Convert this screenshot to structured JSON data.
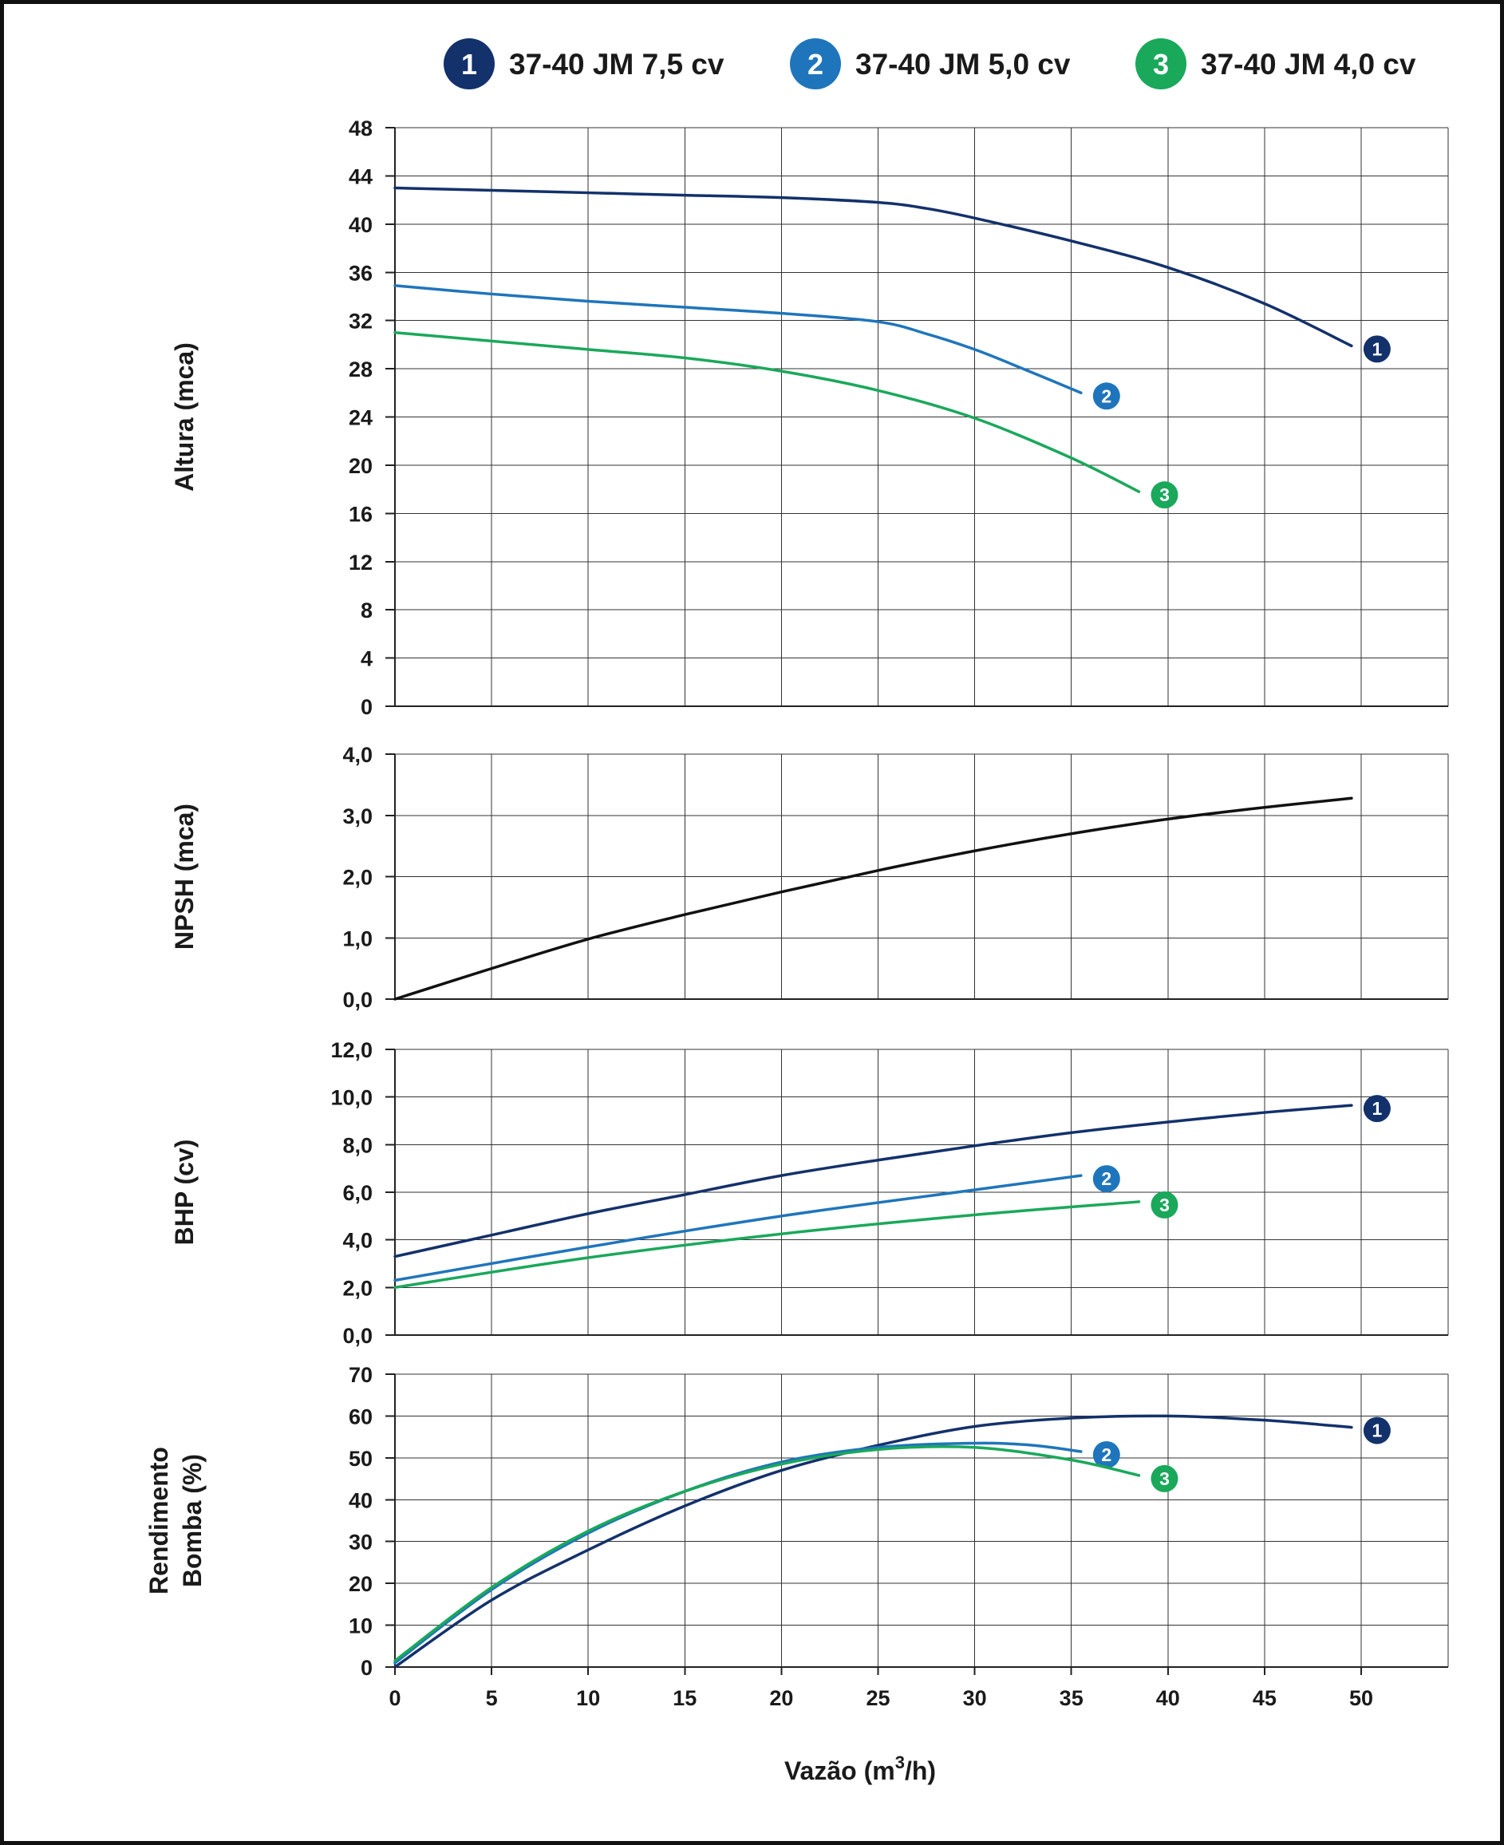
{
  "colors": {
    "s1": "#13316b",
    "s2": "#1f75bc",
    "s3": "#1aa85b",
    "npsh": "#111111"
  },
  "legend": [
    {
      "num": "1",
      "label": "37-40 JM 7,5 cv",
      "color": "#13316b"
    },
    {
      "num": "2",
      "label": "37-40 JM 5,0 cv",
      "color": "#1f75bc"
    },
    {
      "num": "3",
      "label": "37-40 JM 4,0 cv",
      "color": "#1aa85b"
    }
  ],
  "xaxis": {
    "label": "Vazão (m",
    "sup": "3",
    "label_end": "/h)",
    "ticks": [
      0,
      5,
      10,
      15,
      20,
      25,
      30,
      35,
      40,
      45,
      50
    ],
    "range": [
      0,
      54.5
    ]
  },
  "chart_data": [
    {
      "type": "line",
      "ylabel": "Altura (mca)",
      "ylim": [
        0,
        48
      ],
      "yticks": [
        "0",
        "4",
        "8",
        "12",
        "16",
        "20",
        "24",
        "28",
        "32",
        "36",
        "40",
        "44",
        "48"
      ],
      "grid": true,
      "series": [
        {
          "name": "37-40 JM 7,5 cv",
          "marker": "1",
          "color": "#13316b",
          "x": [
            0,
            5,
            10,
            15,
            20,
            25,
            27.5,
            30,
            35,
            40,
            45,
            49.5
          ],
          "y": [
            43,
            42.8,
            42.6,
            42.4,
            42.2,
            41.8,
            41.3,
            40.5,
            38.6,
            36.4,
            33.4,
            29.9
          ]
        },
        {
          "name": "37-40 JM 5,0 cv",
          "marker": "2",
          "color": "#1f75bc",
          "x": [
            0,
            5,
            10,
            15,
            20,
            25,
            27.5,
            30,
            32.5,
            35.5
          ],
          "y": [
            34.9,
            34.2,
            33.6,
            33.1,
            32.6,
            31.9,
            30.9,
            29.6,
            28.0,
            26.0
          ]
        },
        {
          "name": "37-40 JM 4,0 cv",
          "marker": "3",
          "color": "#1aa85b",
          "x": [
            0,
            5,
            10,
            15,
            20,
            25,
            30,
            35,
            38.5
          ],
          "y": [
            31,
            30.3,
            29.6,
            28.9,
            27.8,
            26.2,
            23.9,
            20.6,
            17.8
          ]
        }
      ]
    },
    {
      "type": "line",
      "ylabel": "NPSH (mca)",
      "ylim": [
        0,
        4
      ],
      "yticks": [
        "0,0",
        "1,0",
        "2,0",
        "3,0",
        "4,0"
      ],
      "grid": true,
      "series": [
        {
          "name": "",
          "color": "#111111",
          "x": [
            0,
            5,
            10,
            15,
            20,
            25,
            30,
            35,
            40,
            45,
            49.5
          ],
          "y": [
            0,
            0.5,
            0.98,
            1.38,
            1.75,
            2.1,
            2.42,
            2.7,
            2.94,
            3.13,
            3.28
          ]
        }
      ]
    },
    {
      "type": "line",
      "ylabel": "BHP (cv)",
      "ylim": [
        0,
        12
      ],
      "yticks": [
        "0,0",
        "2,0",
        "4,0",
        "6,0",
        "8,0",
        "10,0",
        "12,0"
      ],
      "grid": true,
      "series": [
        {
          "name": "37-40 JM 7,5 cv",
          "marker": "1",
          "color": "#13316b",
          "x": [
            0,
            5,
            10,
            15,
            20,
            25,
            30,
            35,
            40,
            45,
            49.5
          ],
          "y": [
            3.3,
            4.2,
            5.1,
            5.9,
            6.7,
            7.35,
            7.95,
            8.5,
            8.95,
            9.35,
            9.65
          ]
        },
        {
          "name": "37-40 JM 5,0 cv",
          "marker": "2",
          "color": "#1f75bc",
          "x": [
            0,
            10,
            20,
            30,
            35.5
          ],
          "y": [
            2.3,
            3.7,
            5.0,
            6.1,
            6.7
          ]
        },
        {
          "name": "37-40 JM 4,0 cv",
          "marker": "3",
          "color": "#1aa85b",
          "x": [
            0,
            10,
            20,
            30,
            38.5
          ],
          "y": [
            2.0,
            3.25,
            4.25,
            5.05,
            5.6
          ]
        }
      ]
    },
    {
      "type": "line",
      "ylabel": "Rendimento Bomba (%)",
      "ylabel_lines": [
        "Rendimento",
        "Bomba (%)"
      ],
      "ylim": [
        0,
        70
      ],
      "yticks": [
        "0",
        "10",
        "20",
        "30",
        "40",
        "50",
        "60",
        "70"
      ],
      "grid": true,
      "series": [
        {
          "name": "37-40 JM 7,5 cv",
          "marker": "1",
          "color": "#13316b",
          "x": [
            0,
            5,
            10,
            15,
            20,
            25,
            30,
            35,
            40,
            45,
            49.5
          ],
          "y": [
            0,
            16,
            28,
            38.5,
            47,
            53,
            57.5,
            59.5,
            60,
            59,
            57.3
          ]
        },
        {
          "name": "37-40 JM 5,0 cv",
          "marker": "2",
          "color": "#1f75bc",
          "x": [
            0,
            5,
            10,
            15,
            20,
            25,
            30,
            33,
            35.5
          ],
          "y": [
            1,
            18.5,
            32,
            42,
            49,
            52.5,
            53.5,
            53,
            51.5
          ]
        },
        {
          "name": "37-40 JM 4,0 cv",
          "marker": "3",
          "color": "#1aa85b",
          "x": [
            0,
            5,
            10,
            15,
            20,
            25,
            30,
            35,
            38.5
          ],
          "y": [
            1.5,
            19,
            32.5,
            42,
            48.5,
            52,
            52.5,
            49.5,
            45.8
          ]
        }
      ]
    }
  ]
}
